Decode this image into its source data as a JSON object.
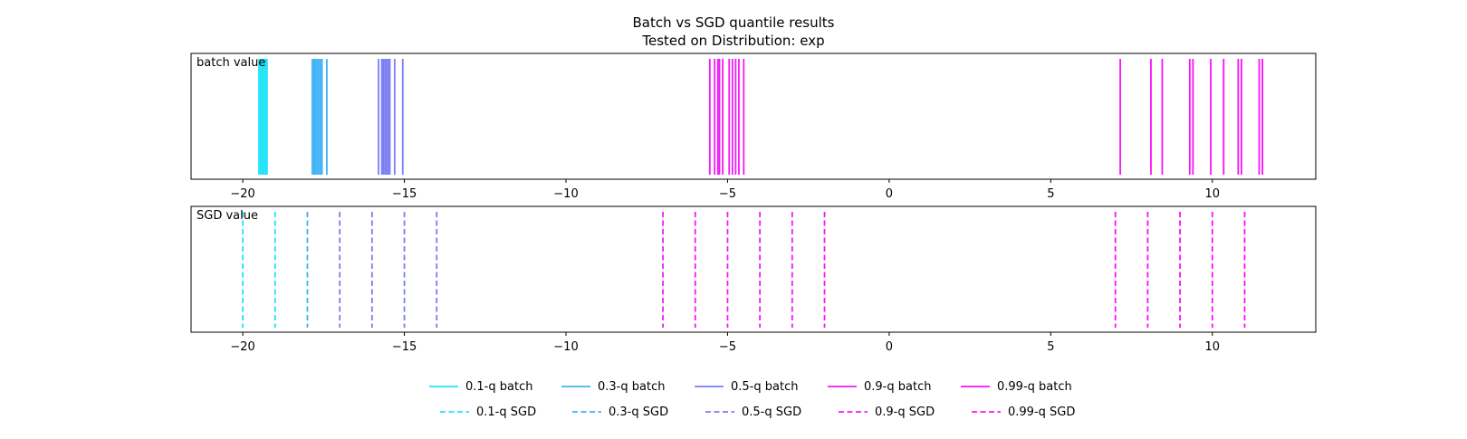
{
  "chart_data": {
    "type": "line",
    "title_line1": "Batch vs SGD quantile results",
    "title_line2": "Tested on Distribution: exp",
    "xlim": [
      -21.6,
      13.2
    ],
    "xticks": [
      -20,
      -15,
      -10,
      -5,
      0,
      5,
      10
    ],
    "xtick_labels": [
      "−20",
      "−15",
      "−10",
      "−5",
      "0",
      "5",
      "10"
    ],
    "grid": false,
    "legend_position": "bottom-center",
    "panels": [
      {
        "label": "batch value",
        "style": "solid",
        "series": [
          {
            "name": "0.1-q batch",
            "color": "#1ee3f8",
            "values": [
              -19.5,
              -19.45,
              -19.4,
              -19.35,
              -19.3,
              -19.25
            ]
          },
          {
            "name": "0.3-q batch",
            "color": "#3fb3f6",
            "values": [
              -17.85,
              -17.8,
              -17.75,
              -17.7,
              -17.65,
              -17.6,
              -17.55,
              -17.4
            ]
          },
          {
            "name": "0.5-q batch",
            "color": "#7a7ef4",
            "values": [
              -15.8,
              -15.7,
              -15.65,
              -15.6,
              -15.55,
              -15.5,
              -15.45,
              -15.3,
              -15.05
            ]
          },
          {
            "name": "0.9-q batch",
            "color": "#f01cf6",
            "values": [
              -5.55,
              -5.4,
              -5.3,
              -5.25,
              -5.15,
              -4.95,
              -4.85,
              -4.75,
              -4.65,
              -4.5
            ]
          },
          {
            "name": "0.99-q batch",
            "color": "#fb10fb",
            "values": [
              7.15,
              8.1,
              8.45,
              9.3,
              9.4,
              9.95,
              10.35,
              10.8,
              10.9,
              11.45,
              11.55
            ]
          }
        ]
      },
      {
        "label": "SGD value",
        "style": "dashed",
        "series": [
          {
            "name": "0.1-q SGD",
            "color": "#1ee3f8",
            "values": [
              -20,
              -19
            ]
          },
          {
            "name": "0.3-q SGD",
            "color": "#3fb3f6",
            "values": [
              -18
            ]
          },
          {
            "name": "0.5-q SGD",
            "color": "#7a7ef4",
            "values": [
              -17,
              -16,
              -15,
              -14
            ]
          },
          {
            "name": "0.9-q SGD",
            "color": "#f01cf6",
            "values": [
              -7,
              -6,
              -5,
              -4,
              -3,
              -2
            ]
          },
          {
            "name": "0.99-q SGD",
            "color": "#fb10fb",
            "values": [
              7,
              8,
              9,
              10,
              11
            ]
          }
        ]
      }
    ],
    "legend": {
      "rows": [
        [
          {
            "label": "0.1-q batch",
            "color": "#1ee3f8",
            "style": "solid"
          },
          {
            "label": "0.3-q batch",
            "color": "#3fb3f6",
            "style": "solid"
          },
          {
            "label": "0.5-q batch",
            "color": "#7a7ef4",
            "style": "solid"
          },
          {
            "label": "0.9-q batch",
            "color": "#f01cf6",
            "style": "solid"
          },
          {
            "label": "0.99-q batch",
            "color": "#fb10fb",
            "style": "solid"
          }
        ],
        [
          {
            "label": "0.1-q SGD",
            "color": "#1ee3f8",
            "style": "dashed"
          },
          {
            "label": "0.3-q SGD",
            "color": "#3fb3f6",
            "style": "dashed"
          },
          {
            "label": "0.5-q SGD",
            "color": "#7a7ef4",
            "style": "dashed"
          },
          {
            "label": "0.9-q SGD",
            "color": "#f01cf6",
            "style": "dashed"
          },
          {
            "label": "0.99-q SGD",
            "color": "#fb10fb",
            "style": "dashed"
          }
        ]
      ]
    }
  }
}
